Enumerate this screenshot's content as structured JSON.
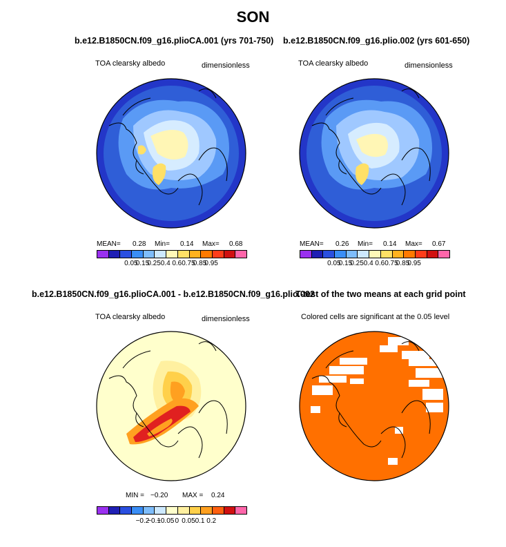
{
  "season": "SON",
  "colors": {
    "ocean_blue": "#2f5ed7",
    "ring_blue": "#2336c8",
    "light_blue": "#9fc8ff",
    "pale_blue": "#d6ecff",
    "pale_yellow": "#fff6b5",
    "yellow": "#ffe066",
    "diff_bg": "#ffffcc",
    "diff_orange": "#ffb020",
    "diff_red": "#e02020",
    "ttest_orange": "#ff7000"
  },
  "panel1": {
    "title": "b.e12.B1850CN.f09_g16.plioCA.001 (yrs 701-750)",
    "left_label": "TOA clearsky albedo",
    "right_label": "dimensionless",
    "mean_label": "MEAN=",
    "mean_value": "0.28",
    "min_label": "Min=",
    "min_value": "0.14",
    "max_label": "Max=",
    "max_value": "0.68"
  },
  "panel2": {
    "title": "b.e12.B1850CN.f09_g16.plio.002 (yrs 601-650)",
    "left_label": "TOA clearsky albedo",
    "right_label": "dimensionless",
    "mean_label": "MEAN=",
    "mean_value": "0.26",
    "min_label": "Min=",
    "min_value": "0.14",
    "max_label": "Max=",
    "max_value": "0.67"
  },
  "panel3": {
    "title": "b.e12.B1850CN.f09_g16.plioCA.001 - b.e12.B1850CN.f09_g16.plio.002",
    "left_label": "TOA clearsky albedo",
    "right_label": "dimensionless",
    "min_label": "MIN =",
    "min_value": "−0.20",
    "max_label": "MAX =",
    "max_value": "0.24"
  },
  "panel4": {
    "title": "T-test of the two means at each grid point",
    "label": "Colored cells are significant at the 0.05 level"
  },
  "colorbar_abs": {
    "colors": [
      "#9a30f0",
      "#1f1fb4",
      "#2a4fe0",
      "#3a8ef6",
      "#7ebdfb",
      "#cde9ff",
      "#fff8b8",
      "#ffe066",
      "#ffb21f",
      "#ff7a00",
      "#ff3d1a",
      "#d01010",
      "#ff66aa"
    ],
    "ticks": [
      "0.05",
      "0.15",
      "0.25",
      "0.4",
      "0.6",
      "0.75",
      "0.85",
      "0.95"
    ]
  },
  "colorbar_diff": {
    "colors": [
      "#9a30f0",
      "#1f1fb4",
      "#2a4fe0",
      "#3a8ef6",
      "#7ebdfb",
      "#cde9ff",
      "#ffffcc",
      "#fff0a0",
      "#ffd04a",
      "#ffa020",
      "#ff6010",
      "#d01010",
      "#ff66aa"
    ],
    "ticks": [
      "−0.2",
      "−0.1",
      "−0.05",
      "0",
      "0.05",
      "0.1",
      "0.2"
    ]
  }
}
